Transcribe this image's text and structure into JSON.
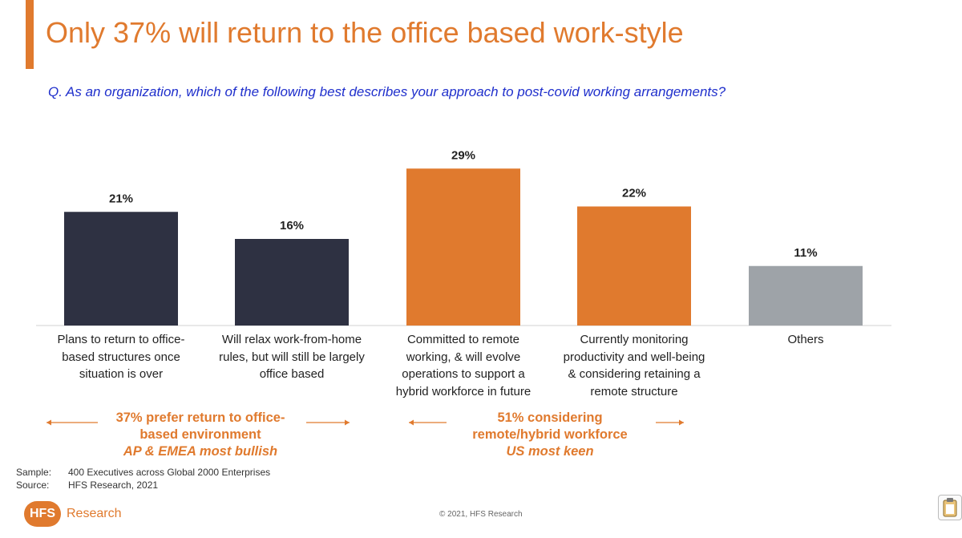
{
  "title": "Only 37% will return to the office based work-style",
  "question": "Q. As an organization, which of the following best describes your approach to post-covid working arrangements?",
  "chart_data": {
    "type": "bar",
    "categories": [
      "Plans to return to office-based structures once situation is over",
      "Will relax work-from-home rules, but will still be largely office based",
      "Committed to remote working, & will evolve operations to support a hybrid workforce in future",
      "Currently monitoring productivity and well-being & considering retaining a remote structure",
      "Others"
    ],
    "category_lines": [
      [
        "Plans to return to office-",
        "based structures once",
        "situation is over"
      ],
      [
        "Will relax work-from-home",
        "rules, but will still be largely",
        "office based"
      ],
      [
        "Committed to remote",
        "working, & will evolve",
        "operations to support a",
        "hybrid workforce in future"
      ],
      [
        "Currently monitoring",
        "productivity and well-being",
        "& considering retaining a",
        "remote structure"
      ],
      [
        "Others"
      ]
    ],
    "values": [
      21,
      16,
      29,
      22,
      11
    ],
    "data_labels": [
      "21%",
      "16%",
      "29%",
      "22%",
      "11%"
    ],
    "colors": [
      "#2E3142",
      "#2E3142",
      "#E07A2E",
      "#E07A2E",
      "#9EA3A8"
    ],
    "ylim": [
      0,
      30
    ],
    "grid": false,
    "xlabel": "",
    "ylabel": ""
  },
  "callouts": {
    "left": [
      "37% prefer return to office-",
      "based environment",
      "AP & EMEA most bullish"
    ],
    "right": [
      "51% considering",
      "remote/hybrid workforce",
      "US most keen"
    ]
  },
  "footer": {
    "sample_label": "Sample:",
    "sample_value": "400 Executives across Global 2000 Enterprises",
    "source_label": "Source:",
    "source_value": "HFS Research, 2021",
    "copyright": "© 2021, HFS Research",
    "logo_badge": "HFS",
    "logo_text": "Research"
  }
}
